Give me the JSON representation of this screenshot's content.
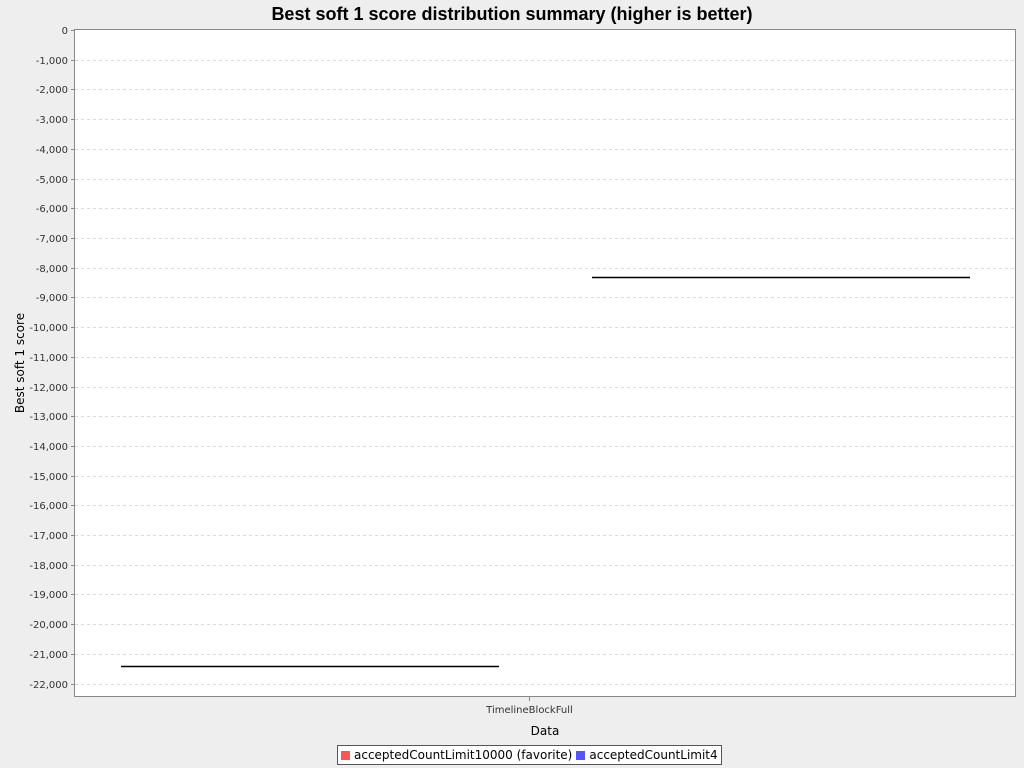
{
  "chart_data": {
    "type": "box",
    "title": "Best soft 1 score distribution summary (higher is better)",
    "xlabel": "Data",
    "ylabel": "Best soft 1 score",
    "categories": [
      "TimelineBlockFull"
    ],
    "ylim": [
      -22450,
      0
    ],
    "yticks": [
      0,
      -1000,
      -2000,
      -3000,
      -4000,
      -5000,
      -6000,
      -7000,
      -8000,
      -9000,
      -10000,
      -11000,
      -12000,
      -13000,
      -14000,
      -15000,
      -16000,
      -17000,
      -18000,
      -19000,
      -20000,
      -21000,
      -22000
    ],
    "ytick_labels": [
      "0",
      "-1,000",
      "-2,000",
      "-3,000",
      "-4,000",
      "-5,000",
      "-6,000",
      "-7,000",
      "-8,000",
      "-9,000",
      "-10,000",
      "-11,000",
      "-12,000",
      "-13,000",
      "-14,000",
      "-15,000",
      "-16,000",
      "-17,000",
      "-18,000",
      "-19,000",
      "-20,000",
      "-21,000",
      "-22,000"
    ],
    "grid": true,
    "legend_position": "bottom",
    "series": [
      {
        "name": "acceptedCountLimit10000 (favorite)",
        "color": "#ff5555",
        "values": [
          -21400
        ]
      },
      {
        "name": "acceptedCountLimit4",
        "color": "#5555ff",
        "values": [
          -8300
        ]
      }
    ]
  }
}
